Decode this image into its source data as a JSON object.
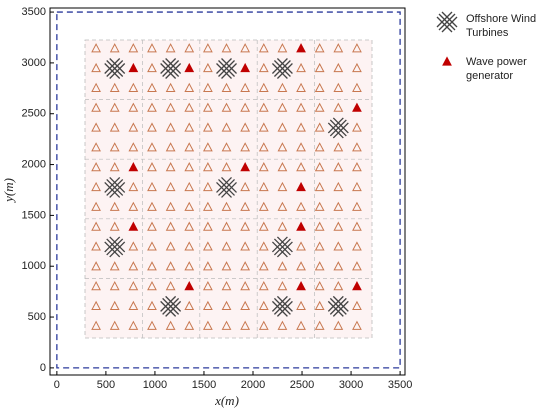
{
  "chart_data": {
    "type": "scatter",
    "xlabel": "x(m)",
    "ylabel": "y(m)",
    "xlim": [
      -70,
      3550
    ],
    "ylim": [
      -70,
      3540
    ],
    "xticks": [
      0,
      500,
      1000,
      1500,
      2000,
      2500,
      3000,
      3500
    ],
    "yticks": [
      0,
      500,
      1000,
      1500,
      2000,
      2500,
      3000,
      3500
    ],
    "series": [
      {
        "name": "Offshore Wind Turbines",
        "marker": "turbine",
        "color": "#444444",
        "x": [
          590,
          1160,
          1730,
          2300,
          2870,
          590,
          1730,
          590,
          2300,
          1160,
          2300,
          2870
        ],
        "y": [
          2945,
          2945,
          2945,
          2945,
          2360,
          1775,
          1775,
          1190,
          1190,
          605,
          605,
          605
        ]
      },
      {
        "name": "Wave power generator",
        "marker": "filled-triangle",
        "color": "#c00000",
        "x": [
          2490,
          780,
          1350,
          1920,
          3060,
          780,
          1920,
          2490,
          780,
          2490,
          1350,
          2490,
          3060
        ],
        "y": [
          3140,
          2945,
          2945,
          2945,
          2555,
          1970,
          1970,
          1775,
          1385,
          1385,
          800,
          800,
          800
        ]
      },
      {
        "marker": "open-triangle",
        "color": "#c87850",
        "rows": [
          {
            "y": 410,
            "x": [
              400,
              590,
              780,
              970,
              1160,
              1350,
              1540,
              1730,
              1920,
              2110,
              2300,
              2490,
              2680,
              2870,
              3060
            ]
          },
          {
            "y": 605,
            "x": [
              400,
              590,
              780,
              970,
              1350,
              1540,
              1730,
              1920,
              2110,
              2490,
              2680,
              3060
            ]
          },
          {
            "y": 800,
            "x": [
              400,
              590,
              780,
              970,
              1160,
              1540,
              1730,
              1920,
              2110,
              2300,
              2680,
              2870
            ]
          },
          {
            "y": 995,
            "x": [
              400,
              590,
              780,
              970,
              1160,
              1350,
              1540,
              1730,
              1920,
              2110,
              2300,
              2490,
              2680,
              2870,
              3060
            ]
          },
          {
            "y": 1190,
            "x": [
              400,
              780,
              970,
              1160,
              1350,
              1540,
              1730,
              1920,
              2110,
              2490,
              2680,
              2870,
              3060
            ]
          },
          {
            "y": 1385,
            "x": [
              400,
              590,
              970,
              1160,
              1350,
              1540,
              1730,
              1920,
              2110,
              2300,
              2680,
              2870,
              3060
            ]
          },
          {
            "y": 1580,
            "x": [
              400,
              590,
              780,
              970,
              1160,
              1350,
              1540,
              1730,
              1920,
              2110,
              2300,
              2490,
              2680,
              2870,
              3060
            ]
          },
          {
            "y": 1775,
            "x": [
              400,
              780,
              970,
              1160,
              1350,
              1540,
              1920,
              2110,
              2300,
              2680,
              2870,
              3060
            ]
          },
          {
            "y": 1970,
            "x": [
              400,
              590,
              970,
              1160,
              1350,
              1540,
              1730,
              2110,
              2300,
              2490,
              2680,
              2870,
              3060
            ]
          },
          {
            "y": 2165,
            "x": [
              400,
              590,
              780,
              970,
              1160,
              1350,
              1540,
              1730,
              1920,
              2110,
              2300,
              2490,
              2680,
              2870,
              3060
            ]
          },
          {
            "y": 2360,
            "x": [
              400,
              590,
              780,
              970,
              1160,
              1350,
              1540,
              1730,
              1920,
              2110,
              2300,
              2490,
              2680,
              3060
            ]
          },
          {
            "y": 2555,
            "x": [
              400,
              590,
              780,
              970,
              1160,
              1350,
              1540,
              1730,
              1920,
              2110,
              2300,
              2490,
              2680,
              2870
            ]
          },
          {
            "y": 2750,
            "x": [
              400,
              590,
              780,
              970,
              1160,
              1350,
              1540,
              1730,
              1920,
              2110,
              2300,
              2490,
              2680,
              2870,
              3060
            ]
          },
          {
            "y": 2945,
            "x": [
              400,
              970,
              1540,
              2110,
              2490,
              2680,
              2870,
              3060
            ]
          },
          {
            "y": 3140,
            "x": [
              400,
              590,
              780,
              970,
              1160,
              1350,
              1540,
              1730,
              1920,
              2110,
              2300,
              2680,
              2870,
              3060
            ]
          }
        ]
      }
    ],
    "boundary_color": "#2b3a9c",
    "legend": "right"
  }
}
